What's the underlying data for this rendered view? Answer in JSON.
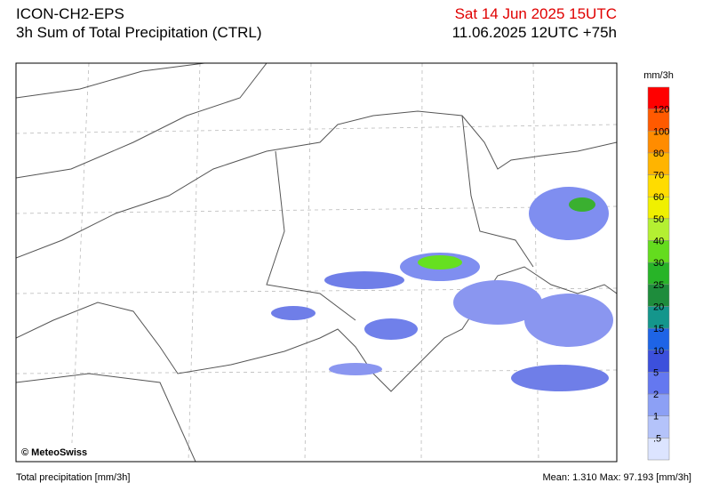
{
  "header": {
    "model": "ICON-CH2-EPS",
    "product": "3h Sum of Total Precipitation (CTRL)",
    "valid_time": "Sat 14 Jun 2025 15UTC",
    "run_time": "11.06.2025 12UTC +75h"
  },
  "colorbar": {
    "unit": "mm/3h",
    "labels": [
      "120",
      "100",
      "80",
      "70",
      "60",
      "50",
      "40",
      "30",
      "25",
      "20",
      "15",
      "10",
      "5",
      "2",
      "1",
      ".5"
    ]
  },
  "map": {
    "credit": "© MeteoSwiss"
  },
  "footer": {
    "left": "Total precipitation [mm/3h]",
    "right": "Mean:  1.310 Max:  97.193 [mm/3h]"
  }
}
